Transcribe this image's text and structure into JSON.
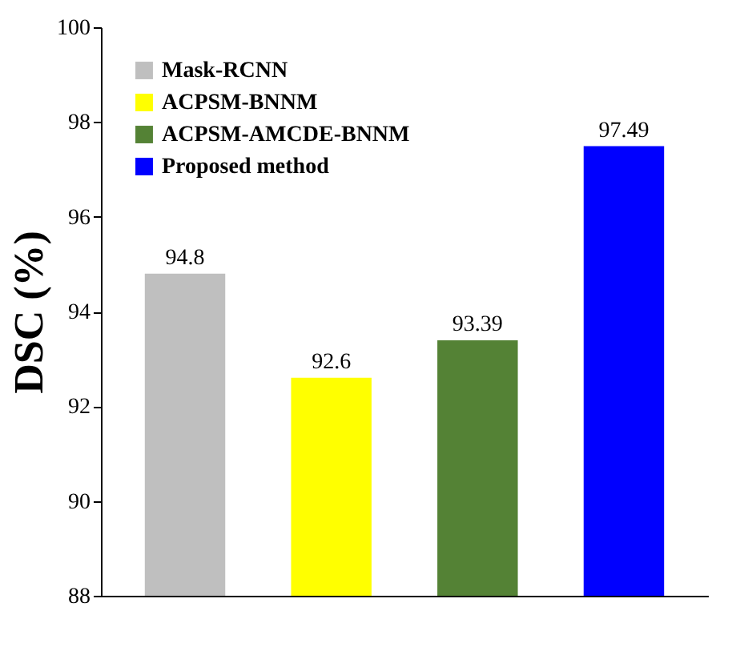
{
  "chart_data": {
    "type": "bar",
    "ylabel": "DSC (%)",
    "categories": [
      null,
      null,
      null,
      null
    ],
    "series": [
      {
        "name": "Mask-RCNN",
        "color": "#bfbfbf",
        "values": [
          94.8,
          null,
          null,
          null
        ]
      },
      {
        "name": "ACPSM-BNNM",
        "color": "#ffff00",
        "values": [
          null,
          92.6,
          null,
          null
        ]
      },
      {
        "name": "ACPSM-AMCDE-BNNM",
        "color": "#548235",
        "values": [
          null,
          null,
          93.39,
          null
        ]
      },
      {
        "name": "Proposed method",
        "color": "#0000ff",
        "values": [
          null,
          null,
          null,
          97.49
        ]
      }
    ],
    "ylim": [
      88,
      100
    ],
    "yticks": [
      88,
      90,
      92,
      94,
      96,
      98,
      100
    ],
    "data_labels": true,
    "legend": "top left",
    "grid": false,
    "tick_labels": "y"
  }
}
